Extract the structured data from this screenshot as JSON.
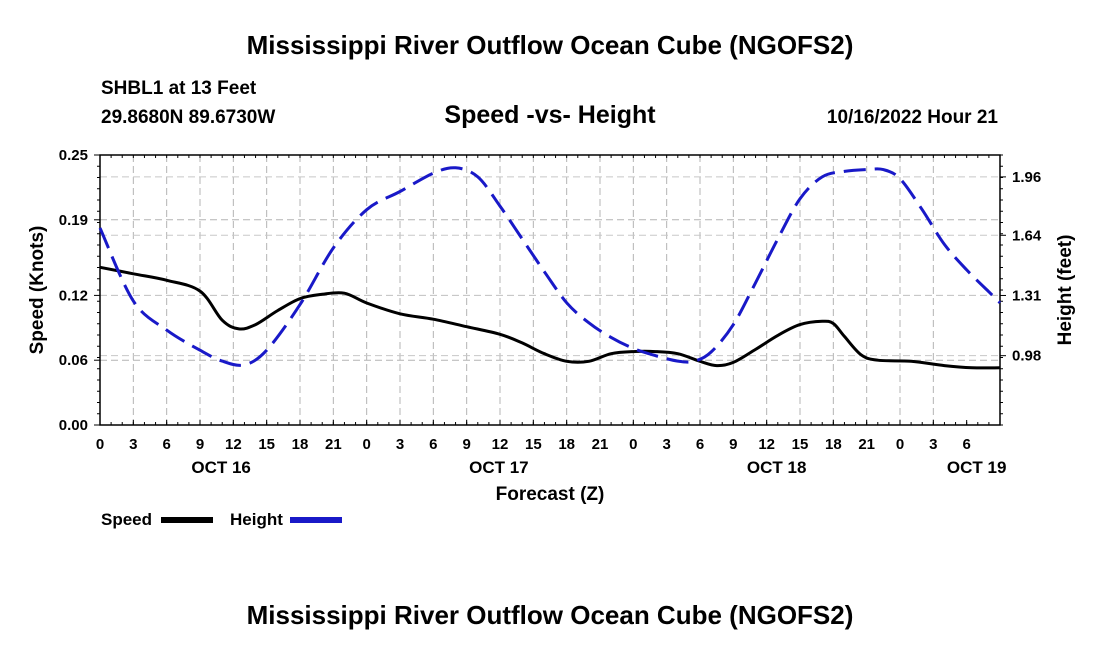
{
  "page_title": "Mississippi River Outflow Ocean Cube (NGOFS2)",
  "station": "SHBL1 at 13 Feet",
  "coords": "29.8680N  89.6730W",
  "date": "10/16/2022 Hour 21",
  "bottom_title": "Mississippi River Outflow Ocean Cube (NGOFS2)",
  "chart_data": {
    "type": "line",
    "title": "Speed -vs- Height",
    "xlabel": "Forecast (Z)",
    "ylabel_left": "Speed (Knots)",
    "ylabel_right": "Height (feet)",
    "x_range_hours": [
      0,
      81
    ],
    "x_tick_labels": [
      "0",
      "3",
      "6",
      "9",
      "12",
      "15",
      "18",
      "21",
      "0",
      "3",
      "6",
      "9",
      "12",
      "15",
      "18",
      "21",
      "0",
      "3",
      "6",
      "9",
      "12",
      "15",
      "18",
      "21",
      "0",
      "3",
      "6"
    ],
    "date_labels": [
      {
        "label": "OCT 16",
        "hour": 10
      },
      {
        "label": "OCT 17",
        "hour": 35
      },
      {
        "label": "OCT 18",
        "hour": 60
      },
      {
        "label": "OCT 19",
        "hour": 78
      }
    ],
    "y_left": {
      "range": [
        0,
        0.25
      ],
      "ticks": [
        "0.00",
        "0.06",
        "0.12",
        "0.19",
        "0.25"
      ]
    },
    "y_right": {
      "range": [
        0.6,
        2.08
      ],
      "ticks": [
        "0.98",
        "1.31",
        "1.64",
        "1.96"
      ]
    },
    "series": [
      {
        "name": "Speed",
        "axis": "left",
        "color": "#000000",
        "dash": "solid",
        "points": [
          [
            0,
            0.146
          ],
          [
            3,
            0.14
          ],
          [
            6,
            0.134
          ],
          [
            9,
            0.124
          ],
          [
            11,
            0.097
          ],
          [
            12.5,
            0.089
          ],
          [
            14,
            0.093
          ],
          [
            16,
            0.106
          ],
          [
            18,
            0.117
          ],
          [
            20,
            0.121
          ],
          [
            22,
            0.122
          ],
          [
            24,
            0.113
          ],
          [
            27,
            0.103
          ],
          [
            30,
            0.098
          ],
          [
            33,
            0.091
          ],
          [
            36,
            0.084
          ],
          [
            38,
            0.076
          ],
          [
            40,
            0.066
          ],
          [
            42,
            0.059
          ],
          [
            44,
            0.059
          ],
          [
            46,
            0.066
          ],
          [
            48,
            0.068
          ],
          [
            50,
            0.068
          ],
          [
            52,
            0.066
          ],
          [
            54,
            0.059
          ],
          [
            55.5,
            0.055
          ],
          [
            57,
            0.058
          ],
          [
            59,
            0.07
          ],
          [
            61,
            0.083
          ],
          [
            63,
            0.093
          ],
          [
            65,
            0.096
          ],
          [
            66,
            0.094
          ],
          [
            67,
            0.082
          ],
          [
            68.5,
            0.065
          ],
          [
            70,
            0.06
          ],
          [
            73,
            0.059
          ],
          [
            76,
            0.055
          ],
          [
            78.5,
            0.053
          ],
          [
            81,
            0.053
          ]
        ]
      },
      {
        "name": "Height",
        "axis": "right",
        "color": "#1919c8",
        "dash": "dashed",
        "points": [
          [
            0,
            1.68
          ],
          [
            3,
            1.28
          ],
          [
            6,
            1.12
          ],
          [
            9,
            1.01
          ],
          [
            11,
            0.95
          ],
          [
            13,
            0.93
          ],
          [
            15,
            1.01
          ],
          [
            18,
            1.26
          ],
          [
            21,
            1.57
          ],
          [
            24,
            1.78
          ],
          [
            27,
            1.88
          ],
          [
            30,
            1.98
          ],
          [
            32,
            2.01
          ],
          [
            34,
            1.96
          ],
          [
            36,
            1.8
          ],
          [
            38,
            1.62
          ],
          [
            40,
            1.44
          ],
          [
            42,
            1.27
          ],
          [
            44,
            1.16
          ],
          [
            46,
            1.08
          ],
          [
            48,
            1.02
          ],
          [
            50,
            0.98
          ],
          [
            52,
            0.95
          ],
          [
            53.5,
            0.95
          ],
          [
            55,
            1.0
          ],
          [
            57,
            1.15
          ],
          [
            59,
            1.38
          ],
          [
            61,
            1.62
          ],
          [
            63,
            1.84
          ],
          [
            65,
            1.96
          ],
          [
            67,
            1.99
          ],
          [
            69,
            2.0
          ],
          [
            70.5,
            2.0
          ],
          [
            72,
            1.95
          ],
          [
            74,
            1.78
          ],
          [
            76,
            1.59
          ],
          [
            78,
            1.45
          ],
          [
            80,
            1.33
          ],
          [
            81,
            1.27
          ]
        ]
      }
    ],
    "legend": [
      {
        "label": "Speed",
        "color": "#000000"
      },
      {
        "label": "Height",
        "color": "#1919c8"
      }
    ]
  }
}
